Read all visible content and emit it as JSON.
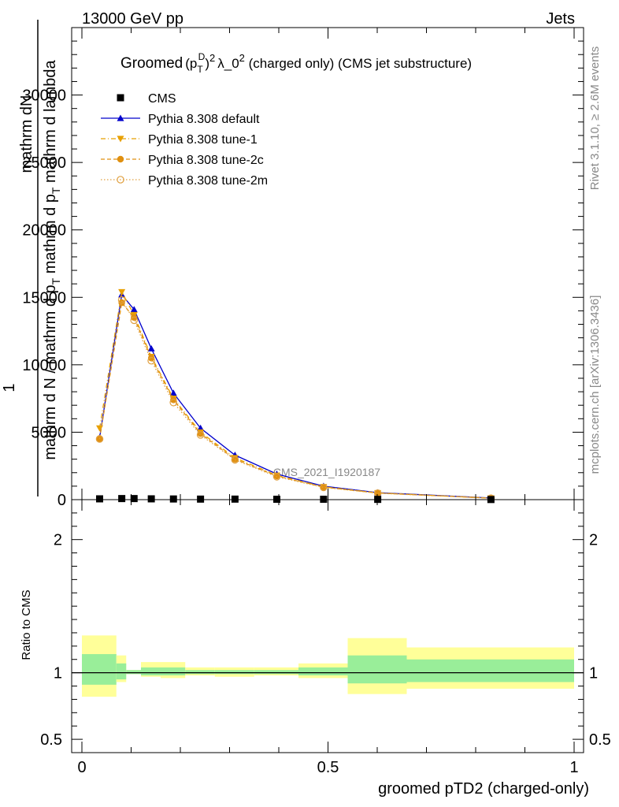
{
  "header": {
    "left": "13000 GeV pp",
    "right": "Jets"
  },
  "side": {
    "rivet": "Rivet 3.1.10, ≥ 2.6M events",
    "mcplots": "mcplots.cern.ch [arXiv:1306.3436]"
  },
  "watermark": "CMS_2021_I1920187",
  "title": {
    "main": "Groomed",
    "p": "(p",
    "sup_d": "D",
    "sub_t": "T",
    "close": ")",
    "sup2": "2",
    "lambda": "λ_0",
    "sup2b": "2",
    "rest": " (charged only) (CMS jet substructure)"
  },
  "ylabel": {
    "one": "1",
    "top": "mathrm d",
    "top2": "N",
    "bottom": "mathrm d N / mathrm d p",
    "bottom_sub": "T",
    "bottom2": " mathrm d p",
    "bottom2_sub": "T",
    "bottom3": " mathrm d lambda"
  },
  "xlabel": "groomed pTD2 (charged-only)",
  "ratio_ylabel": "Ratio to CMS",
  "legend": [
    {
      "label": "CMS",
      "color": "#000000",
      "marker": "square",
      "style": "none"
    },
    {
      "label": "Pythia 8.308 default",
      "color": "#0000cc",
      "marker": "triangle-up",
      "style": "solid"
    },
    {
      "label": "Pythia 8.308 tune-1",
      "color": "#e8a000",
      "marker": "triangle-down",
      "style": "dashdot"
    },
    {
      "label": "Pythia 8.308 tune-2c",
      "color": "#e09010",
      "marker": "circle",
      "style": "dashed"
    },
    {
      "label": "Pythia 8.308 tune-2m",
      "color": "#e0a040",
      "marker": "circle-open",
      "style": "dotted"
    }
  ],
  "chart_data": {
    "type": "line",
    "xlim": [
      0,
      1
    ],
    "ylim": [
      0,
      35000
    ],
    "ratio_ylim": [
      0.4,
      2.3
    ],
    "x_ticks": [
      {
        "v": 0,
        "l": "0"
      },
      {
        "v": 0.5,
        "l": "0.5"
      },
      {
        "v": 1,
        "l": "1"
      }
    ],
    "y_ticks": [
      {
        "v": 0,
        "l": "0"
      },
      {
        "v": 5000,
        "l": "5000"
      },
      {
        "v": 10000,
        "l": "10000"
      },
      {
        "v": 15000,
        "l": "15000"
      },
      {
        "v": 20000,
        "l": "20000"
      },
      {
        "v": 25000,
        "l": "25000"
      },
      {
        "v": 30000,
        "l": "30000"
      }
    ],
    "ratio_ticks": [
      {
        "v": 0.5,
        "l": "0.5"
      },
      {
        "v": 1,
        "l": "1"
      },
      {
        "v": 2,
        "l": "2"
      }
    ],
    "bin_edges": [
      0,
      0.07,
      0.09,
      0.12,
      0.16,
      0.21,
      0.27,
      0.35,
      0.44,
      0.54,
      0.66,
      1.0
    ],
    "x": [
      0.036,
      0.081,
      0.106,
      0.141,
      0.186,
      0.241,
      0.311,
      0.396,
      0.491,
      0.601,
      0.831
    ],
    "cms": [
      60,
      80,
      80,
      60,
      50,
      40,
      40,
      30,
      30,
      20,
      10
    ],
    "series": [
      {
        "name": "Pythia 8.308 default",
        "values": [
          4600,
          15200,
          14100,
          11200,
          7900,
          5300,
          3300,
          1900,
          1000,
          520,
          120
        ]
      },
      {
        "name": "Pythia 8.308 tune-1",
        "values": [
          5300,
          15400,
          13700,
          10600,
          7500,
          5000,
          3100,
          1800,
          950,
          500,
          110
        ]
      },
      {
        "name": "Pythia 8.308 tune-2c",
        "values": [
          4500,
          14600,
          13500,
          10500,
          7400,
          4900,
          3000,
          1750,
          930,
          490,
          110
        ]
      },
      {
        "name": "Pythia 8.308 tune-2m",
        "values": [
          4500,
          14800,
          13300,
          10300,
          7200,
          4800,
          2950,
          1700,
          910,
          480,
          105
        ]
      }
    ],
    "ratio_band_green": [
      [
        0.91,
        1.14
      ],
      [
        0.95,
        1.07
      ],
      [
        0.99,
        1.02
      ],
      [
        0.98,
        1.04
      ],
      [
        0.98,
        1.04
      ],
      [
        0.99,
        1.02
      ],
      [
        0.99,
        1.02
      ],
      [
        0.99,
        1.02
      ],
      [
        0.98,
        1.04
      ],
      [
        0.92,
        1.13
      ],
      [
        0.93,
        1.1
      ]
    ],
    "ratio_band_yellow": [
      [
        0.82,
        1.28
      ],
      [
        0.93,
        1.13
      ],
      [
        0.99,
        1.02
      ],
      [
        0.97,
        1.08
      ],
      [
        0.96,
        1.08
      ],
      [
        0.98,
        1.04
      ],
      [
        0.97,
        1.04
      ],
      [
        0.98,
        1.04
      ],
      [
        0.96,
        1.07
      ],
      [
        0.84,
        1.26
      ],
      [
        0.88,
        1.19
      ]
    ]
  }
}
